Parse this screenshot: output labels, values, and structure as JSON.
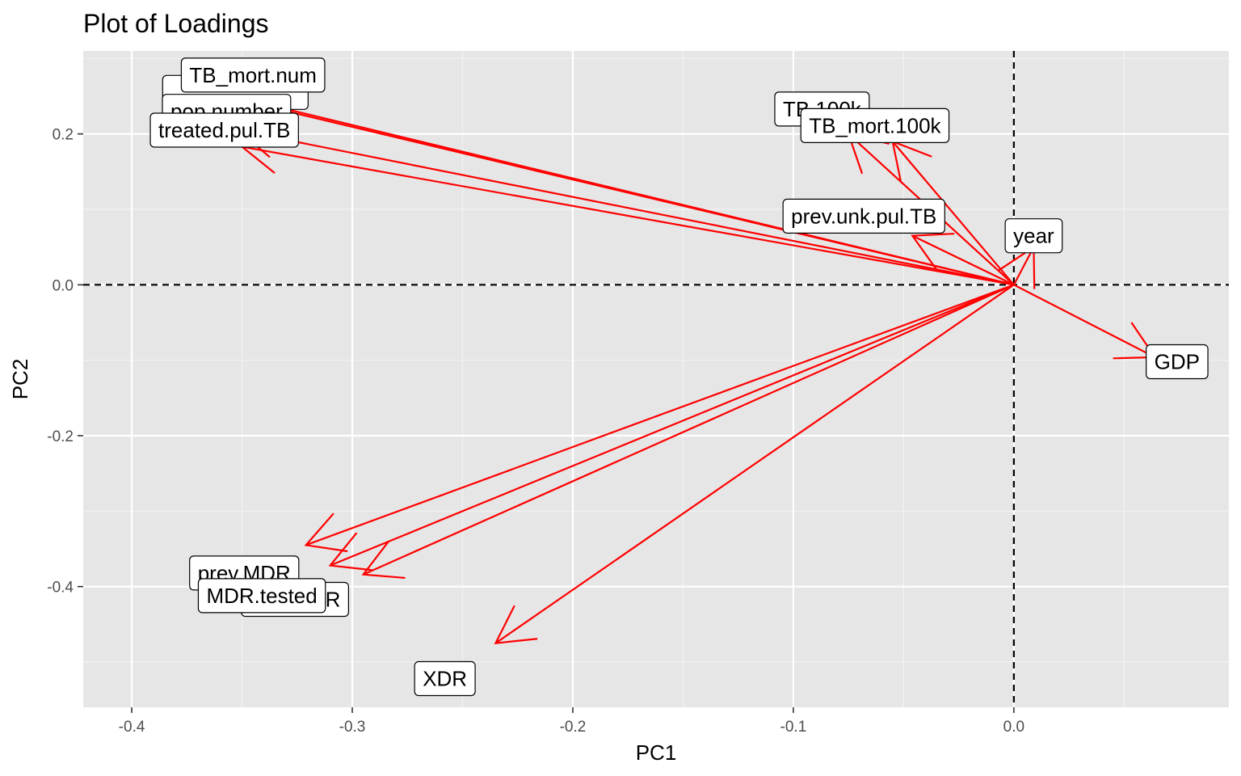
{
  "chart_data": {
    "type": "line",
    "title": "Plot of Loadings",
    "xlabel": "PC1",
    "ylabel": "PC2",
    "xlim": [
      -0.422,
      0.0975
    ],
    "ylim": [
      -0.56,
      0.31
    ],
    "x_ticks": [
      -0.4,
      -0.3,
      -0.2,
      -0.1,
      0.0
    ],
    "y_ticks": [
      -0.4,
      -0.2,
      0.0,
      0.2
    ],
    "x_tick_labels": [
      "-0.4",
      "-0.3",
      "-0.2",
      "-0.1",
      "0.0"
    ],
    "y_tick_labels": [
      "-0.4",
      "-0.2",
      "0.0",
      "0.2"
    ],
    "grid": true,
    "reference_lines": {
      "x": 0,
      "y": 0,
      "style": "dashed"
    },
    "arrow_color": "#ff0000",
    "panel_background": "#e6e6e6",
    "loadings": [
      {
        "name": "TB_mort.num",
        "x": -0.357,
        "y": 0.252,
        "label_x": -0.345,
        "label_y": 0.278
      },
      {
        "name": "pop.number",
        "x": -0.354,
        "y": 0.247,
        "label_x": -0.357,
        "label_y": 0.23
      },
      {
        "name": "treated.pul.TB",
        "x": -0.352,
        "y": 0.205,
        "label_x": -0.358,
        "label_y": 0.205
      },
      {
        "name": "",
        "x": -0.35,
        "y": 0.183,
        "label_x": -0.353,
        "label_y": 0.255
      },
      {
        "name": "TB.100k",
        "x": -0.075,
        "y": 0.2,
        "label_x": -0.087,
        "label_y": 0.233
      },
      {
        "name": "TB_mort.100k",
        "x": -0.055,
        "y": 0.19,
        "label_x": -0.063,
        "label_y": 0.211
      },
      {
        "name": "prev.unk.pul.TB",
        "x": -0.046,
        "y": 0.065,
        "label_x": -0.068,
        "label_y": 0.091
      },
      {
        "name": "year",
        "x": 0.009,
        "y": 0.05,
        "label_x": 0.009,
        "label_y": 0.065
      },
      {
        "name": "GDP",
        "x": 0.064,
        "y": -0.096,
        "label_x": 0.074,
        "label_y": -0.102
      },
      {
        "name": "prev.MDR",
        "x": -0.321,
        "y": -0.345,
        "label_x": -0.349,
        "label_y": -0.382
      },
      {
        "name": "new.MDR",
        "x": -0.295,
        "y": -0.384,
        "label_x": -0.326,
        "label_y": -0.417
      },
      {
        "name": "MDR.tested",
        "x": -0.31,
        "y": -0.372,
        "label_x": -0.341,
        "label_y": -0.412
      },
      {
        "name": "XDR",
        "x": -0.235,
        "y": -0.475,
        "label_x": -0.258,
        "label_y": -0.522
      }
    ]
  }
}
